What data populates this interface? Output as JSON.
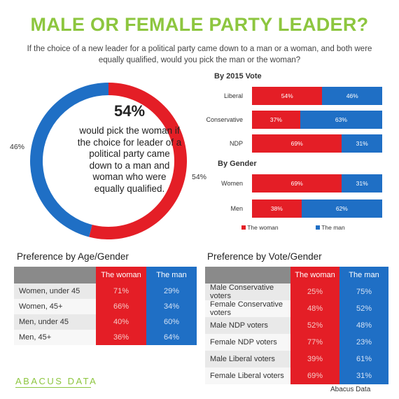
{
  "title": "MALE OR FEMALE PARTY LEADER?",
  "question": "If the choice of a new leader for a political party came down to a man or a woman, and both were equally qualified, would you pick the man or the woman?",
  "donut": {
    "big_value": "54%",
    "text": "would pick the woman if the choice for leader of a political party came down to a man and woman who were equally qualified.",
    "label_left": "46%",
    "label_right": "54%"
  },
  "colors": {
    "woman": "#e41e26",
    "man": "#1f6fc5",
    "accent": "#8dc63f"
  },
  "legend": {
    "woman": "The woman",
    "man": "The man"
  },
  "tables": {
    "age": {
      "heading": "Preference by Age/Gender",
      "col_woman": "The woman",
      "col_man": "The man",
      "rows": [
        {
          "label": "Women, under 45",
          "woman": "71%",
          "man": "29%"
        },
        {
          "label": "Women, 45+",
          "woman": "66%",
          "man": "34%"
        },
        {
          "label": "Men, under 45",
          "woman": "40%",
          "man": "60%"
        },
        {
          "label": "Men, 45+",
          "woman": "36%",
          "man": "64%"
        }
      ]
    },
    "vote": {
      "heading": "Preference by Vote/Gender",
      "col_woman": "The woman",
      "col_man": "The man",
      "rows": [
        {
          "label": "Male Conservative voters",
          "woman": "25%",
          "man": "75%"
        },
        {
          "label": "Female Conservative voters",
          "woman": "48%",
          "man": "52%"
        },
        {
          "label": "Male NDP voters",
          "woman": "52%",
          "man": "48%"
        },
        {
          "label": "Female NDP voters",
          "woman": "77%",
          "man": "23%"
        },
        {
          "label": "Male Liberal voters",
          "woman": "39%",
          "man": "61%"
        },
        {
          "label": "Female Liberal voters",
          "woman": "69%",
          "man": "31%"
        }
      ]
    }
  },
  "logo": "ABACUS DATA",
  "credit": "Abacus Data",
  "chart_data": [
    {
      "type": "pie",
      "categories": [
        "The woman",
        "The man"
      ],
      "values": [
        54,
        46
      ]
    },
    {
      "type": "bar",
      "title": "By 2015 Vote",
      "categories": [
        "Liberal",
        "Conservative",
        "NDP"
      ],
      "series": [
        {
          "name": "The woman",
          "values": [
            54,
            37,
            69
          ]
        },
        {
          "name": "The man",
          "values": [
            46,
            63,
            31
          ]
        }
      ],
      "stacked": true,
      "orientation": "horizontal",
      "legend": "bottom"
    },
    {
      "type": "bar",
      "title": "By Gender",
      "categories": [
        "Women",
        "Men"
      ],
      "series": [
        {
          "name": "The woman",
          "values": [
            69,
            38
          ]
        },
        {
          "name": "The man",
          "values": [
            31,
            62
          ]
        }
      ],
      "stacked": true,
      "orientation": "horizontal",
      "legend": "bottom"
    }
  ]
}
